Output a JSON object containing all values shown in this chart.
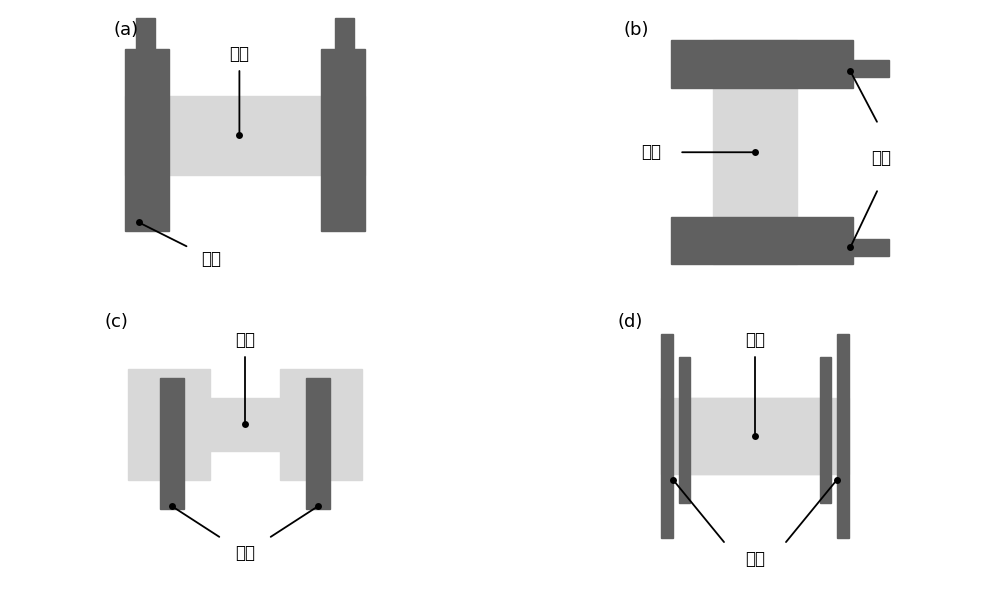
{
  "bg_color": "#ffffff",
  "dark_gray": "#606060",
  "light_gray": "#d8d8d8",
  "text_color": "#000000",
  "font_size": 12,
  "panel_labels": [
    "(a)",
    "(b)",
    "(c)",
    "(d)"
  ],
  "sample_label": "样品",
  "electrode_label": "电极"
}
